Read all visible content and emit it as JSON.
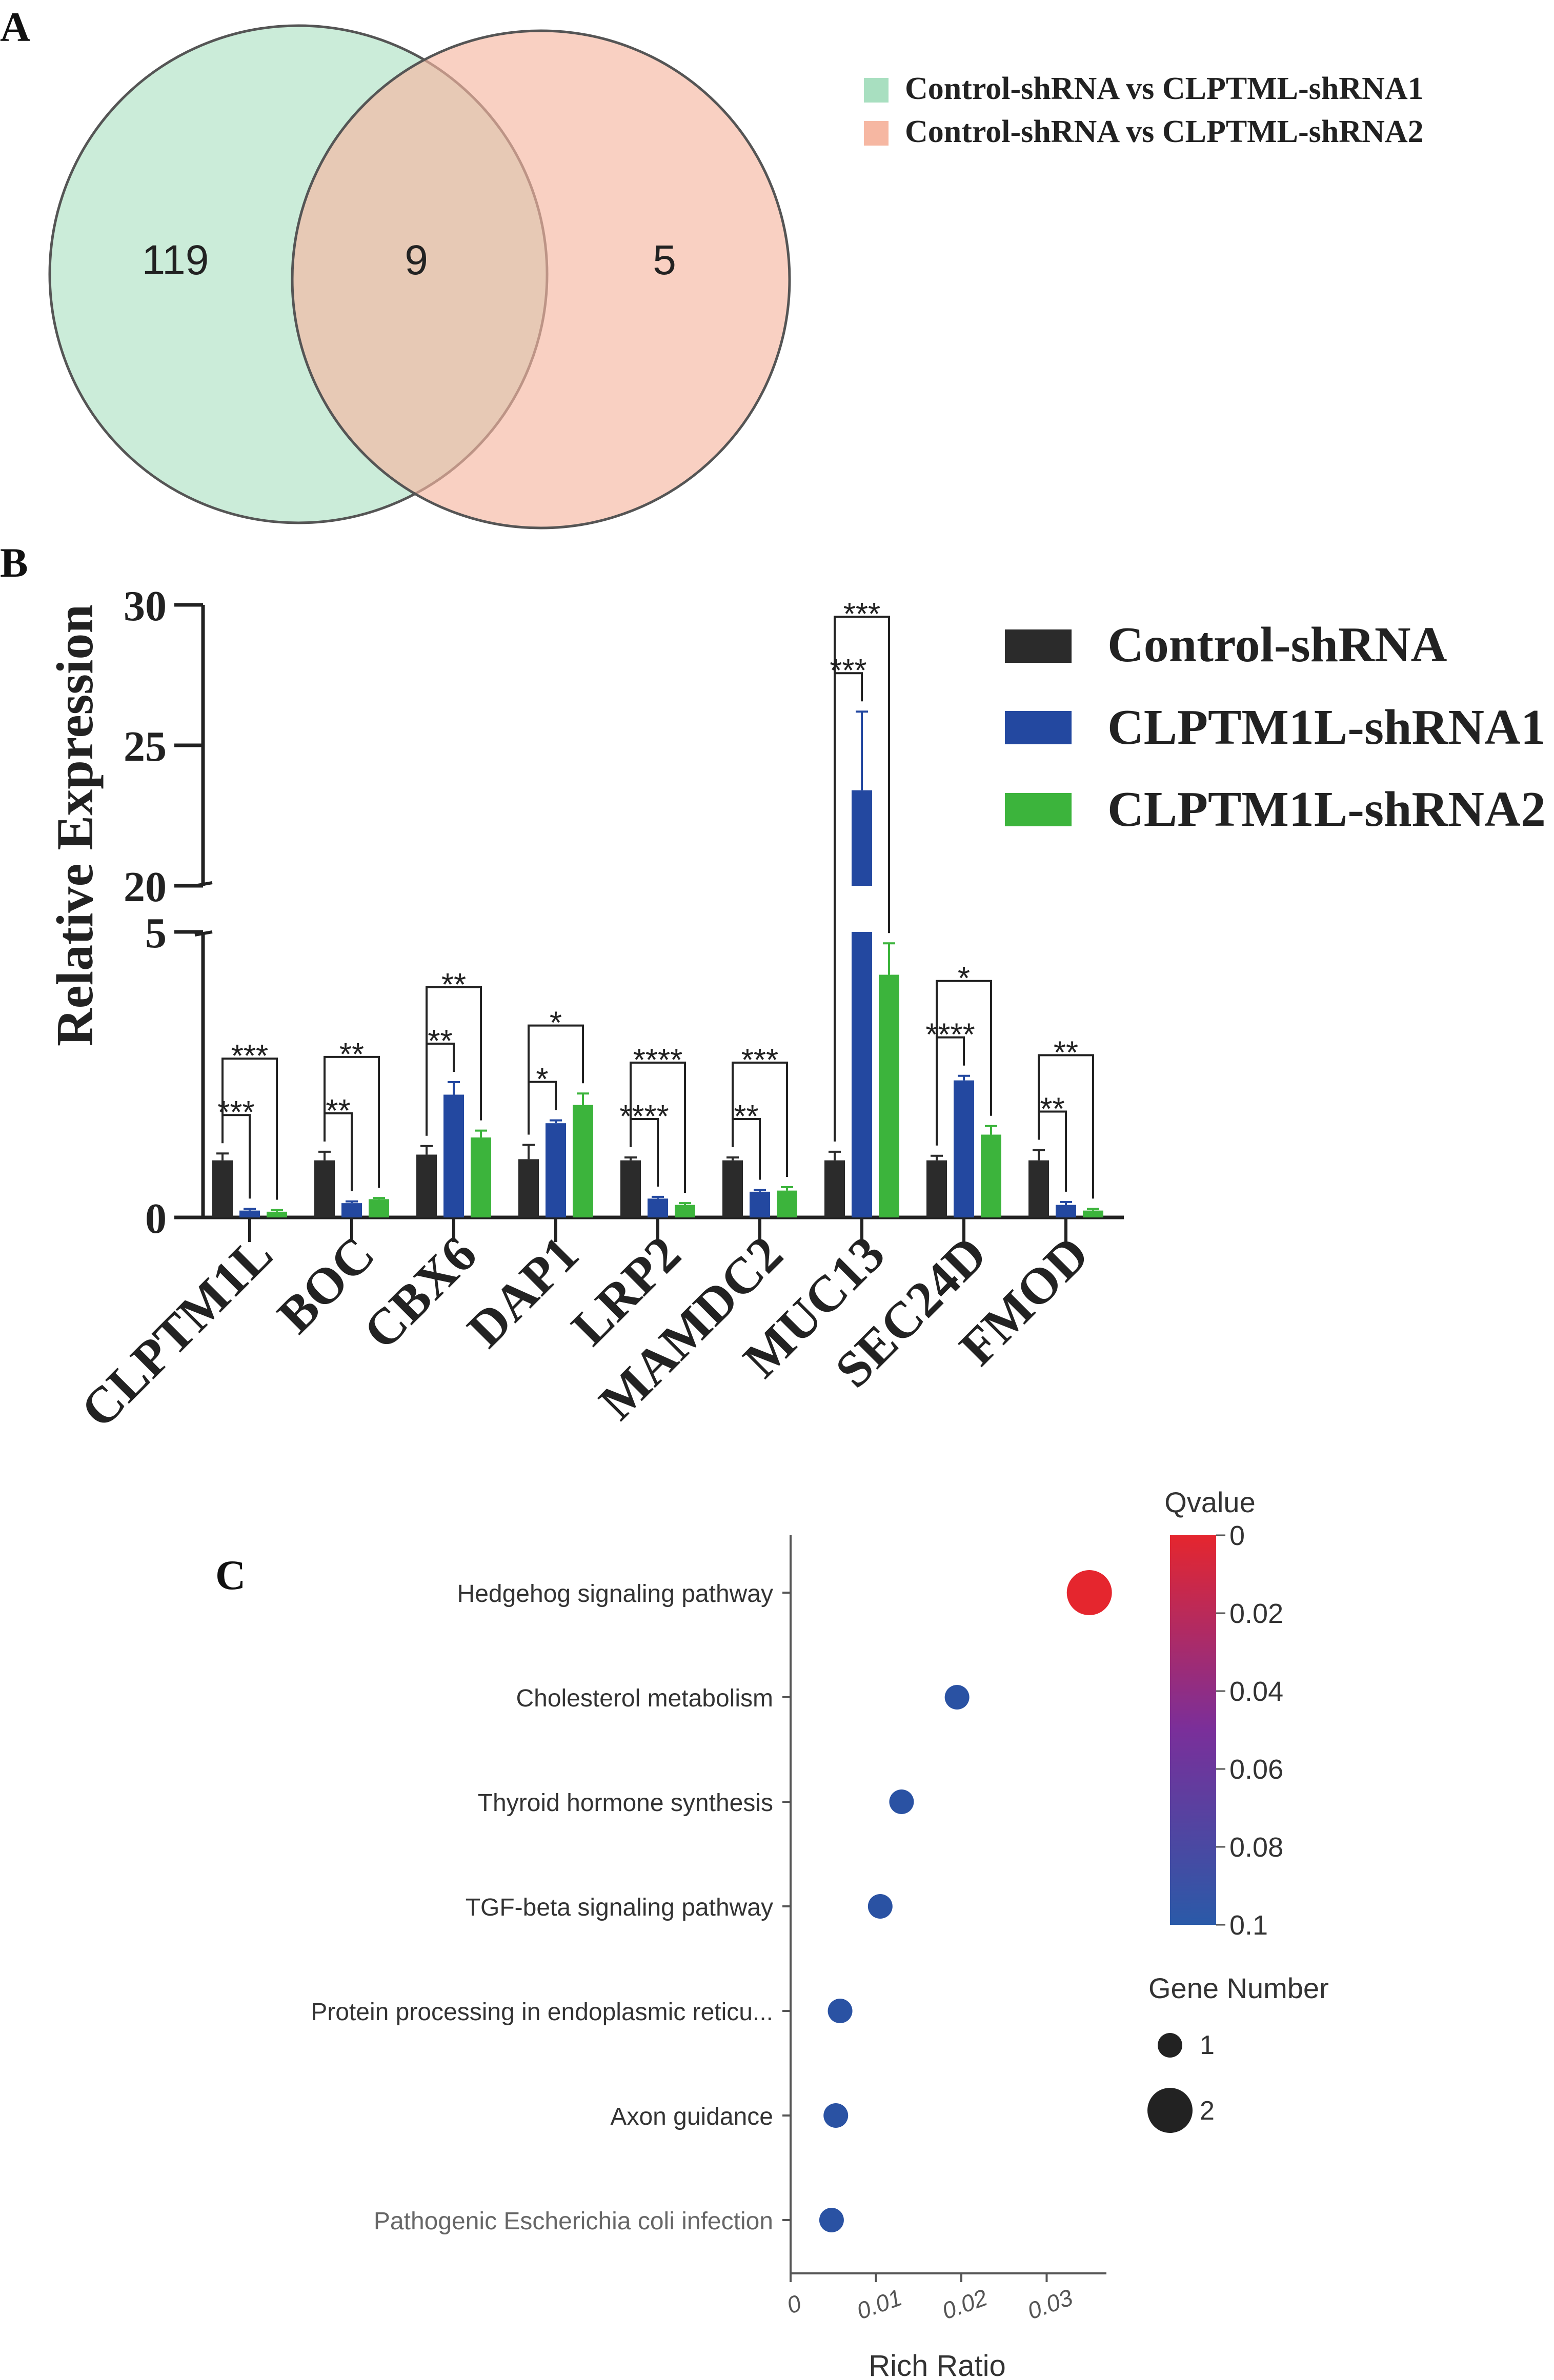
{
  "panels": {
    "a": {
      "label": "A"
    },
    "b": {
      "label": "B"
    },
    "c": {
      "label": "C"
    }
  },
  "chart_data": [
    {
      "type": "venn",
      "sets": [
        {
          "name": "Control-shRNA vs CLPTML-shRNA1",
          "color": "#a8dfc0"
        },
        {
          "name": "Control-shRNA vs CLPTML-shRNA2",
          "color": "#f6b7a2"
        }
      ],
      "values": {
        "only_a": "119",
        "intersection": "9",
        "only_b": "5"
      }
    },
    {
      "type": "bar",
      "ylabel": "Relative Expression",
      "ylim_lower": [
        0,
        5
      ],
      "ylim_upper": [
        20,
        30
      ],
      "yticks": [
        "0",
        "5",
        "20",
        "25",
        "30"
      ],
      "categories": [
        "CLPTM1L",
        "BOC",
        "CBX6",
        "DAP1",
        "LRP2",
        "MAMDC2",
        "MUC13",
        "SEC24D",
        "FMOD"
      ],
      "series": [
        {
          "name": "Control-shRNA",
          "color": "#2b2b2b",
          "values": [
            1.0,
            1.0,
            1.1,
            1.02,
            1.0,
            1.0,
            1.0,
            1.0,
            1.0
          ],
          "errors": [
            0.12,
            0.15,
            0.15,
            0.25,
            0.05,
            0.05,
            0.15,
            0.08,
            0.18
          ]
        },
        {
          "name": "CLPTM1L-shRNA1",
          "color": "#2348a0",
          "values": [
            0.12,
            0.25,
            2.15,
            1.65,
            0.33,
            0.45,
            23.4,
            2.4,
            0.22
          ],
          "errors": [
            0.03,
            0.03,
            0.22,
            0.05,
            0.03,
            0.03,
            2.8,
            0.08,
            0.05
          ]
        },
        {
          "name": "CLPTM1L-shRNA2",
          "color": "#3cb43c",
          "values": [
            0.1,
            0.32,
            1.4,
            1.97,
            0.22,
            0.47,
            4.25,
            1.45,
            0.12
          ],
          "errors": [
            0.03,
            0.02,
            0.12,
            0.2,
            0.03,
            0.06,
            0.55,
            0.15,
            0.03
          ]
        }
      ],
      "significance": [
        {
          "inner": "***",
          "outer": "***"
        },
        {
          "inner": "**",
          "outer": "**"
        },
        {
          "inner": "**",
          "outer": "**"
        },
        {
          "inner": "*",
          "outer": "*"
        },
        {
          "inner": "****",
          "outer": "****"
        },
        {
          "inner": "**",
          "outer": "***"
        },
        {
          "inner": "***",
          "outer": "***"
        },
        {
          "inner": "****",
          "outer": "*"
        },
        {
          "inner": "**",
          "outer": "**"
        }
      ]
    },
    {
      "type": "scatter",
      "xlabel": "Rich Ratio",
      "xticks": [
        "0",
        "0.01",
        "0.02",
        "0.03"
      ],
      "xlim": [
        0,
        0.037
      ],
      "categories": [
        "Hedgehog signaling pathway",
        "Cholesterol metabolism",
        "Thyroid hormone synthesis",
        "TGF-beta signaling pathway",
        "Protein processing in endoplasmic reticu...",
        "Axon guidance",
        "Pathogenic Escherichia coli infection"
      ],
      "points": [
        {
          "x": 0.035,
          "qvalue": 0.0,
          "gene_number": 2
        },
        {
          "x": 0.0195,
          "qvalue": 0.1,
          "gene_number": 1
        },
        {
          "x": 0.013,
          "qvalue": 0.1,
          "gene_number": 1
        },
        {
          "x": 0.0105,
          "qvalue": 0.1,
          "gene_number": 1
        },
        {
          "x": 0.0058,
          "qvalue": 0.1,
          "gene_number": 1
        },
        {
          "x": 0.0053,
          "qvalue": 0.1,
          "gene_number": 1
        },
        {
          "x": 0.0048,
          "qvalue": 0.1,
          "gene_number": 1
        }
      ],
      "colorbar": {
        "title": "Qvalue",
        "ticks": [
          "0",
          "0.02",
          "0.04",
          "0.06",
          "0.08",
          "0.1"
        ],
        "low_color": "#e5262e",
        "high_color": "#2a5aa8"
      },
      "size_legend": {
        "title": "Gene Number",
        "entries": [
          "1",
          "2"
        ]
      }
    }
  ]
}
